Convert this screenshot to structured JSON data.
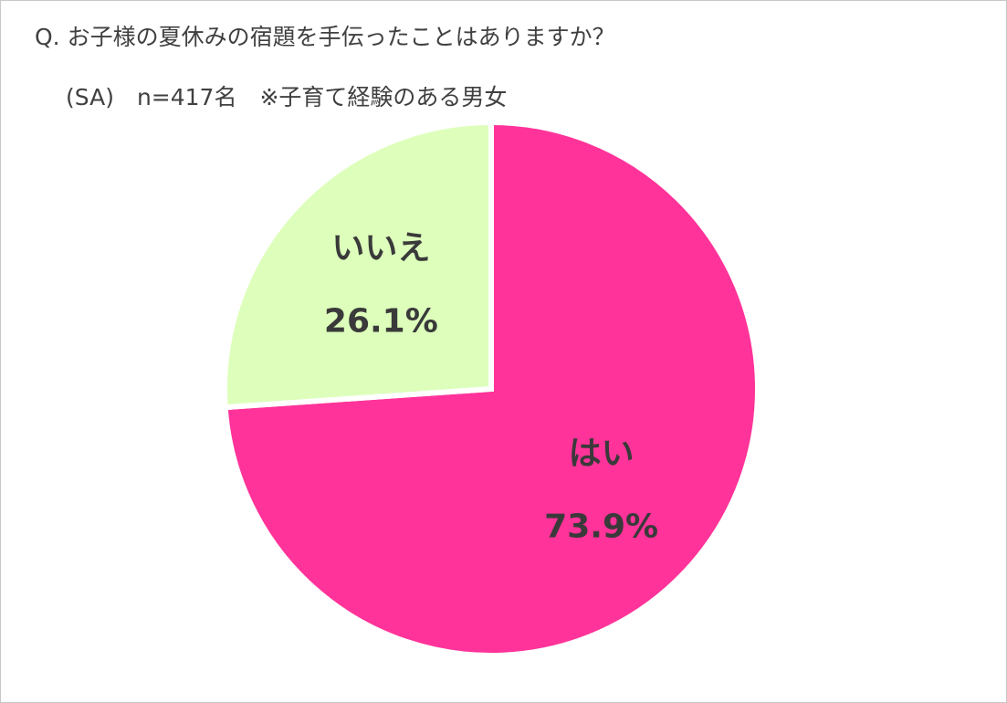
{
  "chart_data": {
    "type": "pie",
    "title": "Q. お子様の夏休みの宿題を手伝ったことはありますか？",
    "subtitle": "(SA)　n=417名　※子育て経験のある男女",
    "categories": [
      "はい",
      "いいえ"
    ],
    "values": [
      73.9,
      26.1
    ],
    "value_labels": [
      "73.9%",
      "26.1%"
    ],
    "colors": [
      "#ff3399",
      "#ddffbb"
    ]
  }
}
